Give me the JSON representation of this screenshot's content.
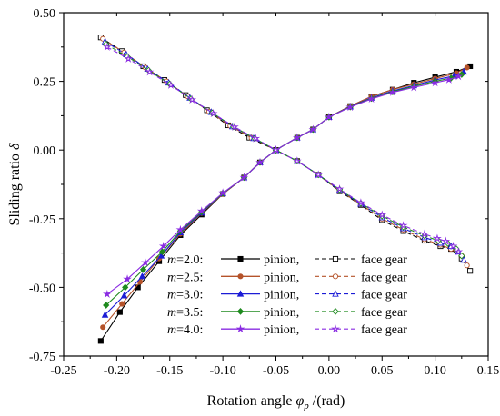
{
  "chart_data": {
    "type": "line",
    "title": "",
    "xlabel": "Rotation angle",
    "xlabel_symbol": "φ",
    "xlabel_sub": "p",
    "xlabel_unit": " /(rad)",
    "ylabel": "Sliding ratio",
    "ylabel_symbol": "δ",
    "xlim": [
      -0.25,
      0.15
    ],
    "ylim": [
      -0.75,
      0.5
    ],
    "xticks": [
      -0.25,
      -0.2,
      -0.15,
      -0.1,
      -0.05,
      0.0,
      0.05,
      0.1,
      0.15
    ],
    "xtick_labels": [
      "-0.25",
      "-0.20",
      "-0.15",
      "-0.10",
      "-0.05",
      "0.00",
      "0.05",
      "0.10",
      "0.15"
    ],
    "yticks": [
      -0.75,
      -0.5,
      -0.25,
      0.0,
      0.25,
      0.5
    ],
    "ytick_labels": [
      "-0.75",
      "-0.50",
      "-0.25",
      "0.00",
      "0.25",
      "0.50"
    ],
    "grid": false,
    "legend_position": "bottom-right",
    "legend": [
      {
        "m_label": "m",
        "m_value": "=2.0:",
        "pinion_label": "pinion,",
        "face_label": "face gear"
      },
      {
        "m_label": "m",
        "m_value": "=2.5:",
        "pinion_label": "pinion,",
        "face_label": "face gear"
      },
      {
        "m_label": "m",
        "m_value": "=3.0:",
        "pinion_label": "pinion,",
        "face_label": "face gear"
      },
      {
        "m_label": "m",
        "m_value": "=3.5:",
        "pinion_label": "pinion,",
        "face_label": "face gear"
      },
      {
        "m_label": "m",
        "m_value": "=4.0:",
        "pinion_label": "pinion,",
        "face_label": "face gear"
      }
    ],
    "series": [
      {
        "group": "m=2.0",
        "part": "pinion",
        "color": "#000000",
        "marker": "square",
        "line": "solid",
        "x": [
          -0.215,
          -0.197,
          -0.18,
          -0.16,
          -0.14,
          -0.12,
          -0.1,
          -0.08,
          -0.065,
          -0.05,
          -0.03,
          -0.015,
          0.0,
          0.02,
          0.04,
          0.06,
          0.08,
          0.1,
          0.12,
          0.133
        ],
        "y": [
          -0.695,
          -0.59,
          -0.5,
          -0.405,
          -0.31,
          -0.235,
          -0.16,
          -0.1,
          -0.045,
          0.0,
          0.045,
          0.075,
          0.12,
          0.16,
          0.195,
          0.22,
          0.245,
          0.265,
          0.285,
          0.305
        ]
      },
      {
        "group": "m=2.0",
        "part": "face gear",
        "color": "#000000",
        "marker": "square-open",
        "line": "dash",
        "x": [
          -0.215,
          -0.195,
          -0.175,
          -0.155,
          -0.135,
          -0.115,
          -0.095,
          -0.075,
          -0.05,
          -0.03,
          -0.01,
          0.01,
          0.03,
          0.05,
          0.07,
          0.09,
          0.105,
          0.115,
          0.125,
          0.133
        ],
        "y": [
          0.41,
          0.36,
          0.305,
          0.255,
          0.2,
          0.145,
          0.09,
          0.045,
          0.0,
          -0.04,
          -0.09,
          -0.15,
          -0.2,
          -0.255,
          -0.295,
          -0.33,
          -0.35,
          -0.36,
          -0.395,
          -0.44
        ]
      },
      {
        "group": "m=2.5",
        "part": "pinion",
        "color": "#b5532a",
        "marker": "circle",
        "line": "solid",
        "x": [
          -0.213,
          -0.195,
          -0.178,
          -0.16,
          -0.14,
          -0.12,
          -0.1,
          -0.08,
          -0.065,
          -0.05,
          -0.03,
          -0.015,
          0.0,
          0.02,
          0.04,
          0.06,
          0.08,
          0.1,
          0.12,
          0.13
        ],
        "y": [
          -0.645,
          -0.56,
          -0.48,
          -0.395,
          -0.305,
          -0.23,
          -0.16,
          -0.1,
          -0.045,
          0.0,
          0.045,
          0.075,
          0.12,
          0.16,
          0.195,
          0.22,
          0.24,
          0.26,
          0.28,
          0.3
        ]
      },
      {
        "group": "m=2.5",
        "part": "face gear",
        "color": "#b5532a",
        "marker": "circle-open",
        "line": "dash",
        "x": [
          -0.213,
          -0.193,
          -0.173,
          -0.153,
          -0.133,
          -0.113,
          -0.093,
          -0.073,
          -0.05,
          -0.03,
          -0.01,
          0.01,
          0.03,
          0.05,
          0.07,
          0.09,
          0.105,
          0.115,
          0.125,
          0.13
        ],
        "y": [
          0.405,
          0.355,
          0.3,
          0.25,
          0.195,
          0.14,
          0.088,
          0.044,
          0.0,
          -0.04,
          -0.09,
          -0.148,
          -0.198,
          -0.25,
          -0.29,
          -0.325,
          -0.345,
          -0.36,
          -0.385,
          -0.42
        ]
      },
      {
        "group": "m=3.0",
        "part": "pinion",
        "color": "#1c1cd6",
        "marker": "triangle",
        "line": "solid",
        "x": [
          -0.211,
          -0.193,
          -0.176,
          -0.158,
          -0.14,
          -0.12,
          -0.1,
          -0.08,
          -0.065,
          -0.05,
          -0.03,
          -0.015,
          0.0,
          0.02,
          0.04,
          0.06,
          0.08,
          0.1,
          0.118,
          0.127
        ],
        "y": [
          -0.6,
          -0.53,
          -0.46,
          -0.385,
          -0.3,
          -0.228,
          -0.158,
          -0.1,
          -0.045,
          0.0,
          0.045,
          0.075,
          0.12,
          0.158,
          0.19,
          0.215,
          0.235,
          0.255,
          0.27,
          0.285
        ]
      },
      {
        "group": "m=3.0",
        "part": "face gear",
        "color": "#1c1cd6",
        "marker": "triangle-open",
        "line": "dash",
        "x": [
          -0.211,
          -0.191,
          -0.171,
          -0.151,
          -0.131,
          -0.111,
          -0.091,
          -0.071,
          -0.05,
          -0.03,
          -0.01,
          0.01,
          0.03,
          0.05,
          0.07,
          0.09,
          0.105,
          0.115,
          0.122,
          0.127
        ],
        "y": [
          0.395,
          0.348,
          0.295,
          0.245,
          0.19,
          0.138,
          0.086,
          0.043,
          0.0,
          -0.04,
          -0.09,
          -0.146,
          -0.196,
          -0.245,
          -0.285,
          -0.318,
          -0.338,
          -0.35,
          -0.37,
          -0.4
        ]
      },
      {
        "group": "m=3.5",
        "part": "pinion",
        "color": "#1e8a1e",
        "marker": "diamond",
        "line": "solid",
        "x": [
          -0.21,
          -0.192,
          -0.175,
          -0.157,
          -0.14,
          -0.12,
          -0.1,
          -0.08,
          -0.065,
          -0.05,
          -0.03,
          -0.015,
          0.0,
          0.02,
          0.04,
          0.06,
          0.08,
          0.1,
          0.115,
          0.125
        ],
        "y": [
          -0.565,
          -0.5,
          -0.435,
          -0.37,
          -0.295,
          -0.225,
          -0.157,
          -0.1,
          -0.045,
          0.0,
          0.045,
          0.075,
          0.12,
          0.157,
          0.188,
          0.212,
          0.232,
          0.25,
          0.262,
          0.275
        ]
      },
      {
        "group": "m=3.5",
        "part": "face gear",
        "color": "#1e8a1e",
        "marker": "diamond-open",
        "line": "dash",
        "x": [
          -0.21,
          -0.19,
          -0.17,
          -0.15,
          -0.13,
          -0.11,
          -0.09,
          -0.07,
          -0.05,
          -0.03,
          -0.01,
          0.01,
          0.03,
          0.05,
          0.07,
          0.09,
          0.103,
          0.112,
          0.12,
          0.125
        ],
        "y": [
          0.385,
          0.34,
          0.29,
          0.24,
          0.186,
          0.135,
          0.085,
          0.042,
          0.0,
          -0.04,
          -0.09,
          -0.144,
          -0.194,
          -0.24,
          -0.28,
          -0.312,
          -0.33,
          -0.34,
          -0.36,
          -0.385
        ]
      },
      {
        "group": "m=4.0",
        "part": "pinion",
        "color": "#8a2be2",
        "marker": "star",
        "line": "solid",
        "x": [
          -0.209,
          -0.19,
          -0.173,
          -0.156,
          -0.14,
          -0.12,
          -0.1,
          -0.08,
          -0.065,
          -0.05,
          -0.03,
          -0.015,
          0.0,
          0.02,
          0.04,
          0.06,
          0.08,
          0.1,
          0.113,
          0.122
        ],
        "y": [
          -0.525,
          -0.47,
          -0.41,
          -0.35,
          -0.29,
          -0.222,
          -0.156,
          -0.1,
          -0.045,
          0.0,
          0.045,
          0.075,
          0.12,
          0.156,
          0.186,
          0.21,
          0.228,
          0.245,
          0.256,
          0.268
        ]
      },
      {
        "group": "m=4.0",
        "part": "face gear",
        "color": "#8a2be2",
        "marker": "star-open",
        "line": "dash",
        "x": [
          -0.209,
          -0.189,
          -0.169,
          -0.149,
          -0.129,
          -0.109,
          -0.089,
          -0.069,
          -0.05,
          -0.03,
          -0.01,
          0.01,
          0.03,
          0.05,
          0.07,
          0.09,
          0.102,
          0.11,
          0.117,
          0.122
        ],
        "y": [
          0.375,
          0.332,
          0.284,
          0.236,
          0.183,
          0.133,
          0.084,
          0.042,
          0.0,
          -0.04,
          -0.09,
          -0.142,
          -0.192,
          -0.236,
          -0.275,
          -0.306,
          -0.322,
          -0.332,
          -0.35,
          -0.37
        ]
      }
    ]
  }
}
